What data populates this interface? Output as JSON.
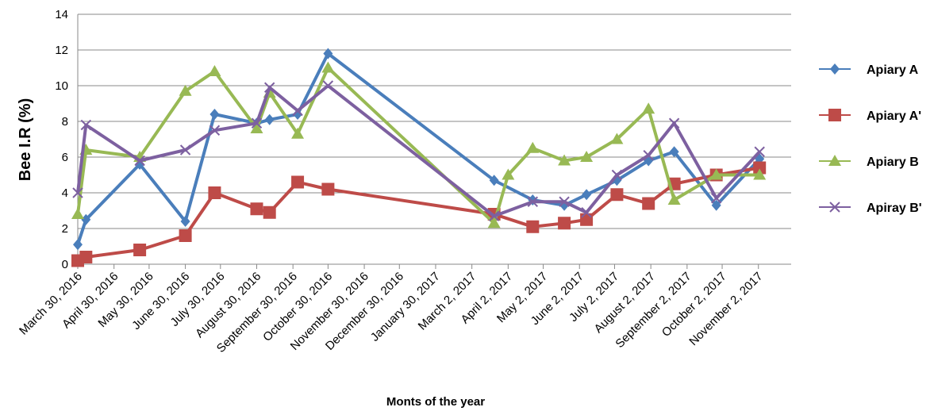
{
  "chart_data": {
    "type": "line",
    "xlabel": "Monts of the year",
    "ylabel": "Bee I.R (%)",
    "ylim": [
      0,
      14
    ],
    "yticks": [
      0,
      2,
      4,
      6,
      8,
      10,
      12,
      14
    ],
    "xlim": [
      "2016-03-30",
      "2017-11-30"
    ],
    "xticks": [
      "March 30, 2016",
      "April 30, 2016",
      "May 30, 2016",
      "June 30, 2016",
      "July 30, 2016",
      "August 30, 2016",
      "September 30, 2016",
      "October 30, 2016",
      "November 30, 2016",
      "December 30, 2016",
      "January 30, 2017",
      "March 2, 2017",
      "April 2, 2017",
      "May 2, 2017",
      "June 2, 2017",
      "July 2, 2017",
      "August 2, 2017",
      "September 2, 2017",
      "October 2, 2017",
      "November 2, 2017"
    ],
    "grid": "horizontal",
    "legend_position": "right",
    "series": [
      {
        "name": "Apiary A",
        "color": "#4a7ebb",
        "marker": "diamond",
        "x": [
          "2016-03-30",
          "2016-04-06",
          "2016-05-22",
          "2016-06-30",
          "2016-07-25",
          "2016-08-30",
          "2016-09-10",
          "2016-10-04",
          "2016-10-30",
          "2017-03-21",
          "2017-04-23",
          "2017-05-20",
          "2017-06-08",
          "2017-07-04",
          "2017-07-31",
          "2017-08-22",
          "2017-09-27",
          "2017-11-03"
        ],
        "y": [
          1.1,
          2.5,
          5.6,
          2.4,
          8.4,
          7.9,
          8.1,
          8.4,
          11.8,
          4.7,
          3.6,
          3.3,
          3.9,
          4.7,
          5.8,
          6.3,
          3.3,
          5.9
        ]
      },
      {
        "name": "Apiary A'",
        "color": "#be4b48",
        "marker": "square",
        "x": [
          "2016-03-30",
          "2016-04-06",
          "2016-05-22",
          "2016-06-30",
          "2016-07-25",
          "2016-08-30",
          "2016-09-10",
          "2016-10-04",
          "2016-10-30",
          "2017-03-21",
          "2017-04-23",
          "2017-05-20",
          "2017-06-08",
          "2017-07-04",
          "2017-07-31",
          "2017-08-22",
          "2017-09-27",
          "2017-11-03"
        ],
        "y": [
          0.2,
          0.4,
          0.8,
          1.6,
          4.0,
          3.1,
          2.9,
          4.6,
          4.2,
          2.8,
          2.1,
          2.3,
          2.5,
          3.9,
          3.4,
          4.5,
          5.0,
          5.4
        ]
      },
      {
        "name": "Apiary B",
        "color": "#98b954",
        "marker": "triangle",
        "x": [
          "2016-03-30",
          "2016-04-06",
          "2016-05-22",
          "2016-06-30",
          "2016-07-25",
          "2016-08-30",
          "2016-09-10",
          "2016-10-04",
          "2016-10-30",
          "2017-03-21",
          "2017-04-02",
          "2017-04-23",
          "2017-05-20",
          "2017-06-08",
          "2017-07-04",
          "2017-07-31",
          "2017-08-22",
          "2017-09-27",
          "2017-11-03"
        ],
        "y": [
          2.8,
          6.4,
          6.0,
          9.7,
          10.8,
          7.6,
          9.6,
          7.3,
          11.0,
          2.3,
          5.0,
          6.5,
          5.8,
          6.0,
          7.0,
          8.7,
          3.6,
          5.0,
          5.0
        ]
      },
      {
        "name": "Apiray B'",
        "color": "#7d60a0",
        "marker": "x",
        "x": [
          "2016-03-30",
          "2016-04-06",
          "2016-05-22",
          "2016-06-30",
          "2016-07-25",
          "2016-08-30",
          "2016-09-10",
          "2016-10-04",
          "2016-10-30",
          "2017-03-21",
          "2017-04-23",
          "2017-05-20",
          "2017-06-08",
          "2017-07-04",
          "2017-07-31",
          "2017-08-22",
          "2017-09-27",
          "2017-11-03"
        ],
        "y": [
          4.0,
          7.8,
          5.8,
          6.4,
          7.5,
          7.9,
          9.9,
          8.6,
          10.0,
          2.7,
          3.5,
          3.5,
          2.9,
          5.0,
          6.1,
          7.9,
          3.7,
          6.3
        ]
      }
    ]
  }
}
